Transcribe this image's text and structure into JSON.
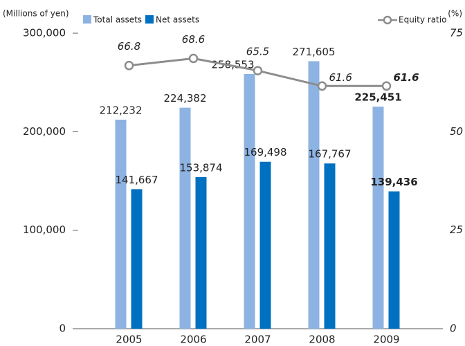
{
  "chart_data": {
    "type": "bar",
    "y_label": "(Millions of yen)",
    "y2_label": "(%)",
    "categories": [
      "2005",
      "2006",
      "2007",
      "2008",
      "2009"
    ],
    "series": [
      {
        "name": "Total assets",
        "color": "#8db3e2",
        "values": [
          212232,
          224382,
          258553,
          271605,
          225451
        ],
        "value_labels": [
          "212,232",
          "224,382",
          "258,553",
          "271,605",
          "225,451"
        ]
      },
      {
        "name": "Net assets",
        "color": "#0070c0",
        "values": [
          141667,
          153874,
          169498,
          167767,
          139436
        ],
        "value_labels": [
          "141,667",
          "153,874",
          "169,498",
          "167,767",
          "139,436"
        ]
      },
      {
        "name": "Equity ratio",
        "type": "line",
        "axis": "y2",
        "color": "#8c8c8c",
        "values": [
          66.8,
          68.6,
          65.5,
          61.6,
          61.6
        ]
      }
    ],
    "ylim": [
      0,
      300000
    ],
    "yticks": [
      0,
      {
        "value": 100000,
        "label": "100,000"
      },
      {
        "value": 200000,
        "label": "200,000"
      },
      {
        "value": 300000,
        "label": "300,000"
      }
    ],
    "y2lim": [
      0,
      75
    ],
    "y2ticks": [
      0,
      25,
      50,
      75
    ]
  }
}
